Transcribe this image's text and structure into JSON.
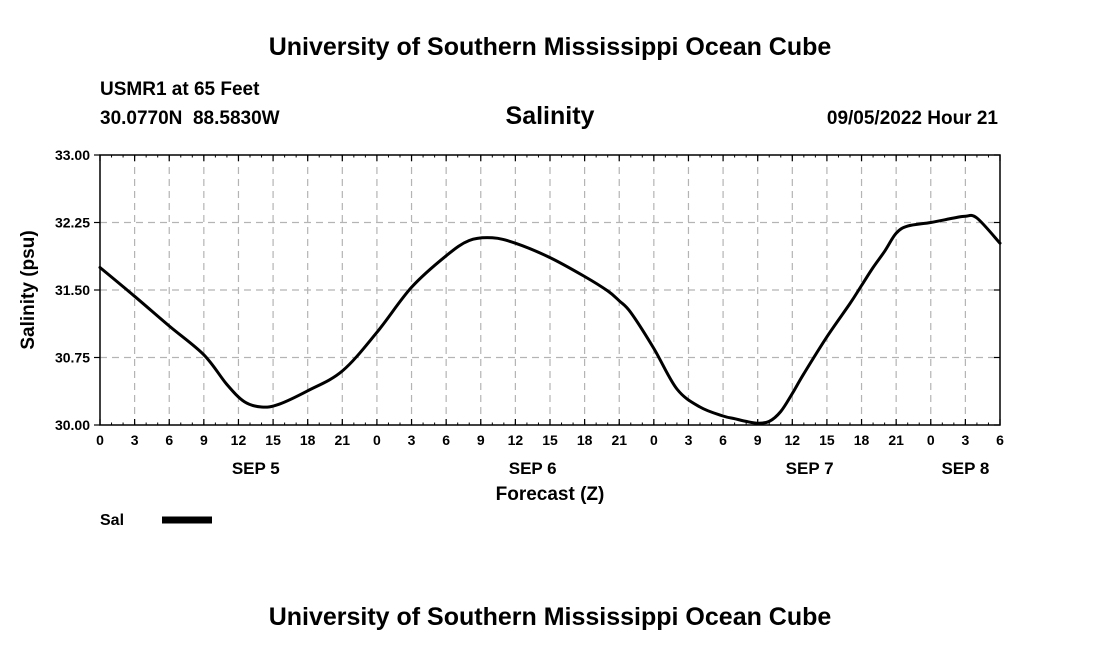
{
  "page_title": "University of Southern Mississippi Ocean Cube",
  "footer_title": "University of Southern Mississippi Ocean Cube",
  "station": {
    "name": "USMR1 at 65 Feet",
    "coordinates": "30.0770N  88.5830W",
    "timestamp": "09/05/2022 Hour 21"
  },
  "chart_data": {
    "type": "line",
    "title": "Salinity",
    "xlabel": "Forecast (Z)",
    "ylabel": "Salinity (psu)",
    "ylim": [
      30.0,
      33.0
    ],
    "yticks": [
      30.0,
      30.75,
      31.5,
      32.25,
      33.0
    ],
    "ytick_labels": [
      "30.00",
      "30.75",
      "31.50",
      "32.25",
      "33.00"
    ],
    "xlim_hours": [
      0,
      78
    ],
    "xticks_hours": [
      0,
      3,
      6,
      9,
      12,
      15,
      18,
      21,
      24,
      27,
      30,
      33,
      36,
      39,
      42,
      45,
      48,
      51,
      54,
      57,
      60,
      63,
      66,
      69,
      72,
      75,
      78
    ],
    "xtick_labels": [
      "0",
      "3",
      "6",
      "9",
      "12",
      "15",
      "18",
      "21",
      "0",
      "3",
      "6",
      "9",
      "12",
      "15",
      "18",
      "21",
      "0",
      "3",
      "6",
      "9",
      "12",
      "15",
      "18",
      "21",
      "0",
      "3",
      "6"
    ],
    "day_labels": [
      {
        "hour": 13.5,
        "label": "SEP 5"
      },
      {
        "hour": 37.5,
        "label": "SEP 6"
      },
      {
        "hour": 61.5,
        "label": "SEP 7"
      },
      {
        "hour": 75,
        "label": "SEP 8"
      }
    ],
    "grid": true,
    "legend": {
      "label": "Sal",
      "placement": "bottom-left"
    },
    "series": [
      {
        "name": "Sal",
        "x": [
          0,
          3,
          6,
          9,
          11,
          12.5,
          14,
          15.5,
          18,
          21,
          24,
          27,
          30,
          32,
          34,
          36,
          39,
          42,
          44,
          45,
          46,
          48,
          50,
          52,
          54,
          55,
          56,
          57,
          58,
          59,
          60,
          61,
          63,
          65,
          66,
          67,
          68,
          69,
          70,
          72,
          74,
          75,
          76,
          78
        ],
        "y": [
          31.75,
          31.43,
          31.1,
          30.78,
          30.45,
          30.26,
          30.2,
          30.23,
          30.38,
          30.6,
          31.03,
          31.53,
          31.88,
          32.05,
          32.08,
          32.02,
          31.86,
          31.65,
          31.49,
          31.38,
          31.25,
          30.85,
          30.4,
          30.2,
          30.1,
          30.07,
          30.04,
          30.02,
          30.04,
          30.15,
          30.35,
          30.57,
          30.98,
          31.35,
          31.55,
          31.75,
          31.93,
          32.13,
          32.21,
          32.25,
          32.3,
          32.32,
          32.3,
          32.02
        ]
      }
    ]
  }
}
